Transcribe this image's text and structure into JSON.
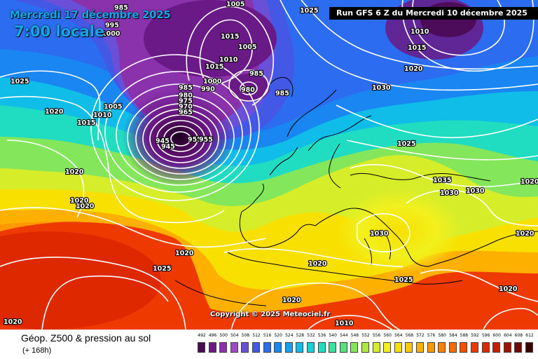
{
  "header": {
    "date_label": "Mercredi 17 décembre 2025",
    "time_label": "7:00 locale",
    "run_label": "Run GFS 6 Z du Mercredi 10 décembre 2025"
  },
  "copyright": "Copyright © 2025 Meteociel.fr",
  "footer": {
    "title": "Géop. Z500 & pression au sol",
    "subtitle": "(+ 168h)"
  },
  "legend": {
    "values": [
      "492",
      "496",
      "500",
      "504",
      "508",
      "512",
      "516",
      "520",
      "524",
      "528",
      "532",
      "536",
      "540",
      "544",
      "548",
      "552",
      "556",
      "560",
      "564",
      "568",
      "572",
      "576",
      "580",
      "584",
      "588",
      "592",
      "596",
      "600",
      "604",
      "608",
      "612"
    ],
    "colors": [
      "#4a0a52",
      "#6a1a86",
      "#8a32ac",
      "#9c4ac6",
      "#6a50d8",
      "#4458e6",
      "#2c6cf0",
      "#1a86f2",
      "#14a2f0",
      "#10bce8",
      "#14d2d8",
      "#20dcc0",
      "#3ae09c",
      "#5ae27a",
      "#84e65a",
      "#aeea3e",
      "#d6ee2a",
      "#f2f01e",
      "#f8e000",
      "#fcc800",
      "#fdb000",
      "#fe9800",
      "#fe8000",
      "#ff6a00",
      "#f85000",
      "#ee3a00",
      "#dc2800",
      "#c81e00",
      "#a01200",
      "#6e0800",
      "#3a0200"
    ]
  },
  "map": {
    "isobar_labels": [
      "985",
      "1005",
      "1025",
      "995",
      "1000",
      "1015",
      "1005",
      "1010",
      "1015",
      "1000",
      "990",
      "985",
      "980",
      "985",
      "1030",
      "1010",
      "1015",
      "1020",
      "1025",
      "1020",
      "1015",
      "1010",
      "1005",
      "985",
      "980",
      "975",
      "970",
      "965",
      "945",
      "945",
      "955",
      "955",
      "1020",
      "1020",
      "1020",
      "1025",
      "1035",
      "1030",
      "1030",
      "1030",
      "1020",
      "1020",
      "1025",
      "1025",
      "1020",
      "1020",
      "1020",
      "1020",
      "1020",
      "1010"
    ]
  }
}
